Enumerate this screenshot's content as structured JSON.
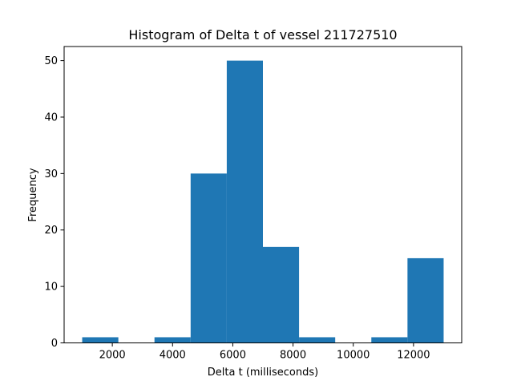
{
  "chart_data": {
    "type": "bar",
    "title": "Histogram of Delta t of vessel 211727510",
    "xlabel": "Delta t (milliseconds)",
    "ylabel": "Frequency",
    "xlim": [
      400,
      13600
    ],
    "ylim": [
      0,
      52.5
    ],
    "x_ticks": [
      2000,
      4000,
      6000,
      8000,
      10000,
      12000
    ],
    "x_tick_labels": [
      "2000",
      "4000",
      "6000",
      "8000",
      "10000",
      "12000"
    ],
    "y_ticks": [
      0,
      10,
      20,
      30,
      40,
      50
    ],
    "y_tick_labels": [
      "0",
      "10",
      "20",
      "30",
      "40",
      "50"
    ],
    "bins": [
      {
        "start": 1000,
        "end": 2200,
        "count": 1
      },
      {
        "start": 2200,
        "end": 3400,
        "count": 0
      },
      {
        "start": 3400,
        "end": 4600,
        "count": 1
      },
      {
        "start": 4600,
        "end": 5800,
        "count": 30
      },
      {
        "start": 5800,
        "end": 7000,
        "count": 50
      },
      {
        "start": 7000,
        "end": 8200,
        "count": 17
      },
      {
        "start": 8200,
        "end": 9400,
        "count": 1
      },
      {
        "start": 9400,
        "end": 10600,
        "count": 0
      },
      {
        "start": 10600,
        "end": 11800,
        "count": 1
      },
      {
        "start": 11800,
        "end": 13000,
        "count": 15
      }
    ],
    "bar_color": "#1f77b4",
    "grid": false,
    "legend": "none"
  }
}
